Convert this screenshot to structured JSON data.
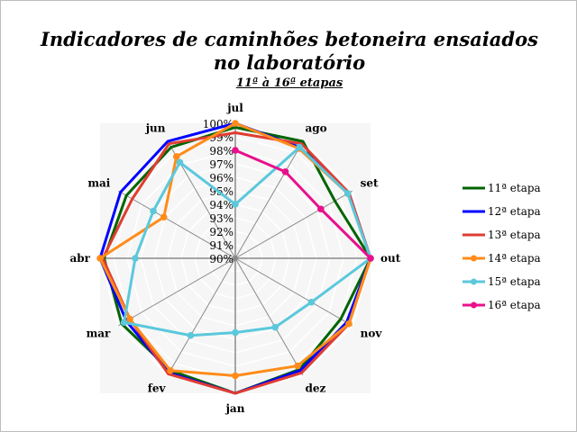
{
  "chart_data": {
    "type": "radar",
    "title": "Indicadores de caminhões betoneira ensaiados",
    "title_line2": "no laboratório",
    "subtitle": "11ª à 16ª etapas",
    "categories": [
      "jul",
      "ago",
      "set",
      "out",
      "nov",
      "dez",
      "jan",
      "fev",
      "mar",
      "abr",
      "mai",
      "jun"
    ],
    "rlim": [
      90,
      100
    ],
    "ticks": [
      "90%",
      "91%",
      "92%",
      "93%",
      "94%",
      "95%",
      "96%",
      "97%",
      "98%",
      "99%",
      "100%"
    ],
    "legend_position": "right",
    "series": [
      {
        "name": "11ª etapa",
        "color": "#006400",
        "markers": false,
        "values": [
          99.7,
          100,
          98.5,
          100,
          99.0,
          99.5,
          100,
          99.6,
          99.7,
          99.7,
          99.3,
          99.5
        ]
      },
      {
        "name": "12ª etapa",
        "color": "#0000ff",
        "markers": false,
        "values": [
          100,
          99.5,
          99.7,
          100,
          99.5,
          99.6,
          100,
          99.8,
          99.3,
          100,
          99.8,
          100
        ]
      },
      {
        "name": "13ª etapa",
        "color": "#e03c31",
        "markers": false,
        "values": [
          99.3,
          99.8,
          99.7,
          100,
          99.7,
          99.8,
          100,
          99.9,
          99.0,
          99.8,
          98.8,
          99.8
        ]
      },
      {
        "name": "14ª etapa",
        "color": "#ff8c1a",
        "markers": true,
        "values": [
          100,
          99.4,
          99.6,
          100,
          99.7,
          99.2,
          98.7,
          99.6,
          99.0,
          100,
          96.1,
          98.7
        ]
      },
      {
        "name": "15ª etapa",
        "color": "#5bc8dc",
        "markers": true,
        "values": [
          94,
          99.5,
          99.6,
          100,
          96.5,
          95.9,
          95.5,
          96.6,
          99.5,
          97.4,
          97.0,
          98.2
        ]
      },
      {
        "name": "16ª etapa",
        "color": "#e8108c",
        "markers": true,
        "values": [
          98,
          97.4,
          97.3,
          100,
          null,
          null,
          null,
          null,
          null,
          null,
          null,
          null
        ]
      }
    ]
  }
}
